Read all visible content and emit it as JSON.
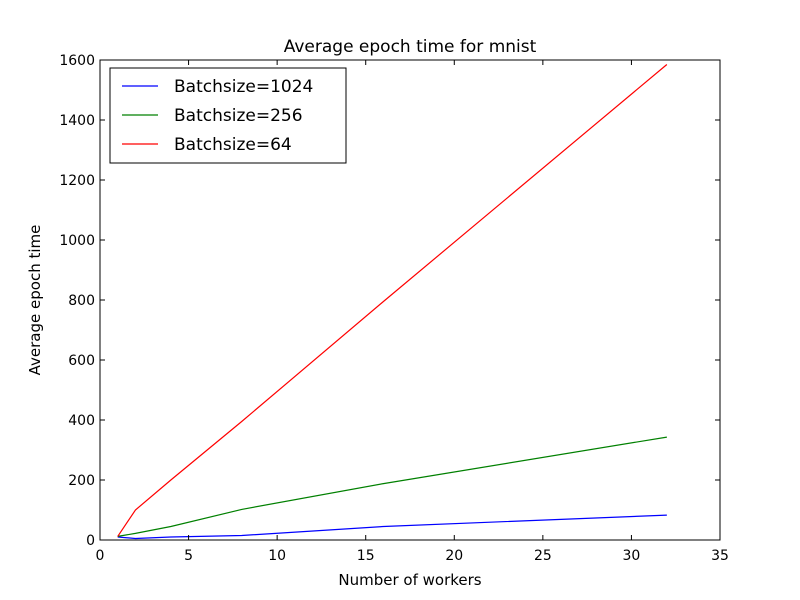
{
  "chart_data": {
    "type": "line",
    "title": "Average epoch time for mnist",
    "xlabel": "Number of workers",
    "ylabel": "Average epoch time",
    "xlim": [
      0,
      35
    ],
    "ylim": [
      0,
      1600
    ],
    "xticks": [
      0,
      5,
      10,
      15,
      20,
      25,
      30,
      35
    ],
    "yticks": [
      0,
      200,
      400,
      600,
      800,
      1000,
      1200,
      1400,
      1600
    ],
    "grid": false,
    "legend_position": "top-left",
    "x": [
      1,
      2,
      4,
      8,
      16,
      32
    ],
    "series": [
      {
        "name": "Batchsize=1024",
        "color": "#0000ff",
        "values": [
          10,
          5,
          10,
          15,
          45,
          83
        ]
      },
      {
        "name": "Batchsize=256",
        "color": "#008000",
        "values": [
          12,
          22,
          45,
          102,
          188,
          343
        ]
      },
      {
        "name": "Batchsize=64",
        "color": "#ff0000",
        "values": [
          12,
          100,
          200,
          395,
          795,
          1585
        ]
      }
    ]
  }
}
